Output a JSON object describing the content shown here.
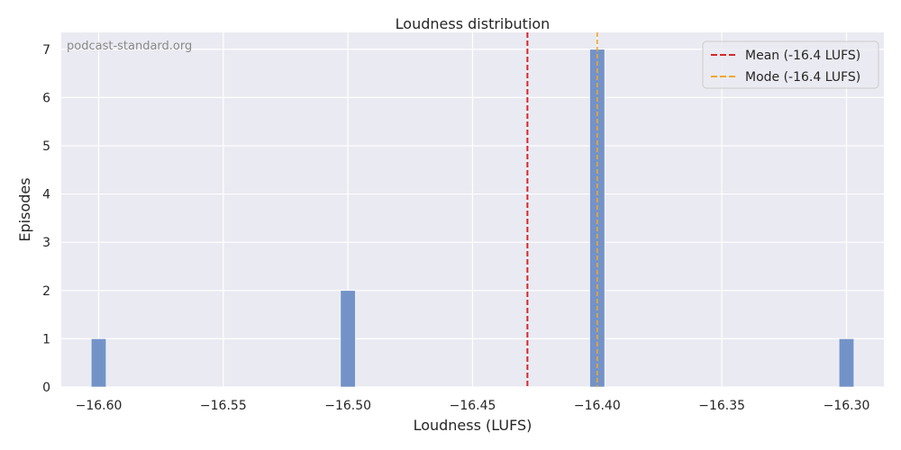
{
  "chart_data": {
    "type": "bar",
    "title": "Loudness distribution",
    "xlabel": "Loudness (LUFS)",
    "ylabel": "Episodes",
    "watermark": "podcast-standard.org",
    "xlim": [
      -16.615,
      -16.285
    ],
    "ylim": [
      0,
      7.35
    ],
    "xticks": [
      -16.6,
      -16.55,
      -16.5,
      -16.45,
      -16.4,
      -16.35,
      -16.3
    ],
    "xtick_labels": [
      "−16.60",
      "−16.55",
      "−16.50",
      "−16.45",
      "−16.40",
      "−16.35",
      "−16.30"
    ],
    "yticks": [
      0,
      1,
      2,
      3,
      4,
      5,
      6,
      7
    ],
    "ytick_labels": [
      "0",
      "1",
      "2",
      "3",
      "4",
      "5",
      "6",
      "7"
    ],
    "bin_width": 0.006,
    "bars": [
      {
        "x": -16.6,
        "value": 1
      },
      {
        "x": -16.5,
        "value": 2
      },
      {
        "x": -16.4,
        "value": 7
      },
      {
        "x": -16.3,
        "value": 1
      }
    ],
    "lines": [
      {
        "name": "Mean (-16.4 LUFS)",
        "x": -16.428,
        "color": "#d62728",
        "style": "dashed"
      },
      {
        "name": "Mode (-16.4 LUFS)",
        "x": -16.4,
        "color": "#f5a623",
        "style": "dashed"
      }
    ],
    "legend_position": "top-right",
    "grid": true,
    "colors": {
      "background": "#eaeaf2",
      "bar": "#7393c8",
      "grid": "#ffffff"
    }
  }
}
